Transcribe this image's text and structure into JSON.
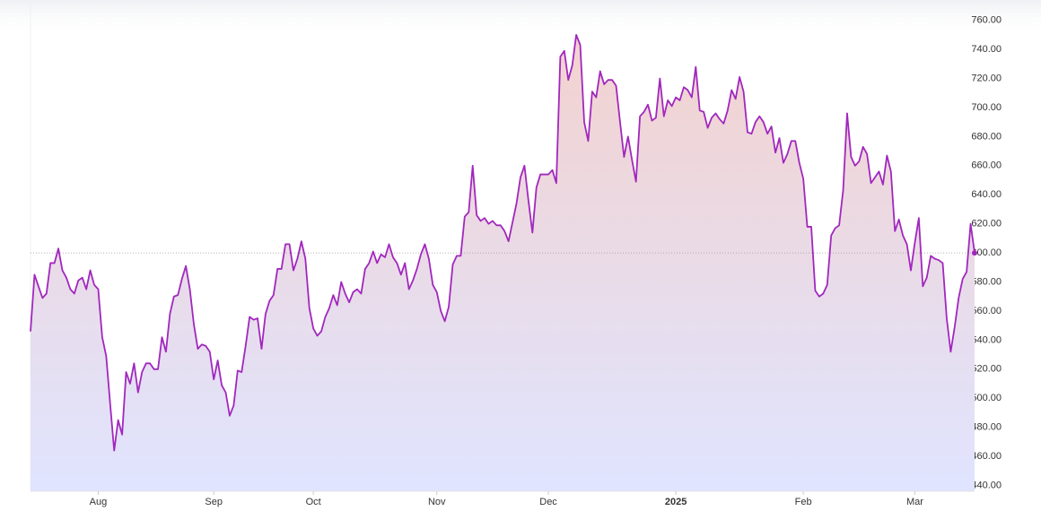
{
  "chart_data": {
    "type": "line",
    "values": [
      546,
      585,
      577,
      569,
      572,
      593,
      593,
      603,
      588,
      583,
      575,
      572,
      581,
      583,
      575,
      588,
      578,
      575,
      542,
      529,
      496,
      464,
      485,
      475,
      518,
      510,
      524,
      504,
      518,
      524,
      524,
      520,
      520,
      542,
      532,
      558,
      570,
      571,
      582,
      591,
      575,
      551,
      534,
      537,
      536,
      532,
      513,
      526,
      509,
      504,
      488,
      495,
      519,
      518,
      536,
      556,
      554,
      555,
      534,
      558,
      567,
      571,
      589,
      589,
      606,
      606,
      588,
      596,
      608,
      596,
      562,
      548,
      543,
      546,
      556,
      562,
      571,
      564,
      580,
      572,
      566,
      573,
      575,
      572,
      589,
      593,
      601,
      593,
      599,
      597,
      606,
      597,
      593,
      585,
      593,
      575,
      581,
      589,
      599,
      606,
      596,
      578,
      573,
      560,
      553,
      563,
      592,
      598,
      598,
      625,
      628,
      660,
      626,
      622,
      624,
      620,
      622,
      619,
      619,
      615,
      608,
      621,
      634,
      652,
      660,
      636,
      614,
      645,
      654,
      654,
      654,
      657,
      648,
      735,
      739,
      719,
      729,
      750,
      743,
      690,
      677,
      711,
      707,
      725,
      716,
      719,
      719,
      715,
      690,
      666,
      680,
      664,
      649,
      694,
      697,
      702,
      691,
      693,
      720,
      694,
      705,
      701,
      707,
      705,
      714,
      712,
      707,
      728,
      698,
      697,
      686,
      693,
      696,
      692,
      689,
      698,
      712,
      706,
      721,
      711,
      683,
      682,
      690,
      694,
      690,
      682,
      687,
      669,
      679,
      662,
      668,
      677,
      677,
      662,
      651,
      618,
      618,
      574,
      570,
      572,
      578,
      612,
      617,
      619,
      643,
      696,
      666,
      660,
      663,
      673,
      668,
      648,
      652,
      656,
      647,
      667,
      656,
      615,
      623,
      612,
      606,
      588,
      607,
      624,
      577,
      583,
      598,
      596,
      595,
      593,
      555,
      532,
      549,
      569,
      582,
      587,
      620,
      600
    ],
    "color": "#a127be",
    "reference_value": 600,
    "ylim": [
      436,
      774
    ],
    "yticks": [
      {
        "value": 440,
        "label": "440.00"
      },
      {
        "value": 460,
        "label": "460.00"
      },
      {
        "value": 480,
        "label": "480.00"
      },
      {
        "value": 500,
        "label": "500.00"
      },
      {
        "value": 520,
        "label": "520.00"
      },
      {
        "value": 540,
        "label": "540.00"
      },
      {
        "value": 560,
        "label": "560.00"
      },
      {
        "value": 580,
        "label": "580.00"
      },
      {
        "value": 600,
        "label": "600.00"
      },
      {
        "value": 620,
        "label": "620.00"
      },
      {
        "value": 640,
        "label": "640.00"
      },
      {
        "value": 660,
        "label": "660.00"
      },
      {
        "value": 680,
        "label": "680.00"
      },
      {
        "value": 700,
        "label": "700.00"
      },
      {
        "value": 720,
        "label": "720.00"
      },
      {
        "value": 740,
        "label": "740.00"
      },
      {
        "value": 760,
        "label": "760.00"
      }
    ],
    "xticks": [
      {
        "value": 17,
        "label": "Aug"
      },
      {
        "value": 46,
        "label": "Sep"
      },
      {
        "value": 71,
        "label": "Oct"
      },
      {
        "value": 102,
        "label": "Nov"
      },
      {
        "value": 130,
        "label": "Dec"
      },
      {
        "value": 162,
        "label": "2025",
        "bold": true
      },
      {
        "value": 194,
        "label": "Feb"
      },
      {
        "value": 222,
        "label": "Mar"
      }
    ]
  }
}
